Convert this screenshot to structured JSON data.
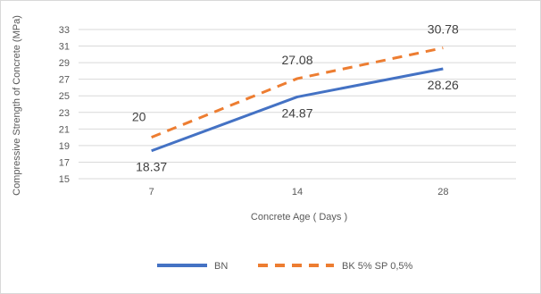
{
  "chart_data": {
    "type": "line",
    "categories": [
      "7",
      "14",
      "28"
    ],
    "series": [
      {
        "name": "BN",
        "values": [
          18.37,
          24.87,
          28.26
        ],
        "color": "#4472C4",
        "style": "solid",
        "labels": [
          "18.37",
          "24.87",
          "28.26"
        ]
      },
      {
        "name": "BK 5% SP 0,5%",
        "values": [
          20,
          27.08,
          30.78
        ],
        "color": "#ED7D31",
        "style": "dashed",
        "labels": [
          "20",
          "27.08",
          "30.78"
        ]
      }
    ],
    "title": "",
    "xlabel": "Concrete Age ( Days )",
    "ylabel": "Compressive Strength of Concrete (MPa)",
    "ylim": [
      15,
      33
    ],
    "yticks": [
      "15",
      "17",
      "19",
      "21",
      "23",
      "25",
      "27",
      "29",
      "31",
      "33"
    ],
    "grid": true,
    "legend_position": "bottom",
    "gridline_color": "#d9d9d9"
  }
}
